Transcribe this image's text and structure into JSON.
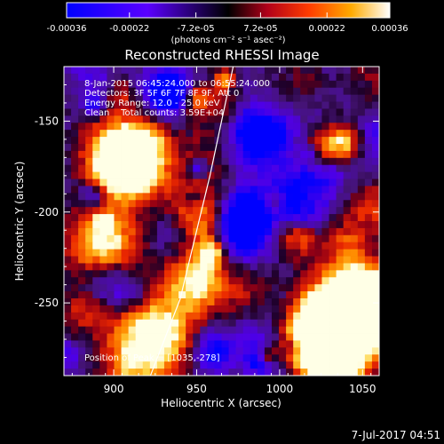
{
  "chart_data": {
    "type": "heatmap",
    "title": "Reconstructed RHESSI Image",
    "xlabel": "Heliocentric X (arcsec)",
    "ylabel": "Heliocentric Y (arcsec)",
    "xlim": [
      870,
      1060
    ],
    "ylim": [
      -290,
      -120
    ],
    "xticks": [
      "900",
      "950",
      "1000",
      "1050"
    ],
    "xtick_values": [
      900,
      950,
      1000,
      1050
    ],
    "yticks": [
      "-150",
      "-200",
      "-250"
    ],
    "ytick_values": [
      -150,
      -200,
      -250
    ],
    "colorbar": {
      "ticks": [
        "-0.00036",
        "-0.00022",
        "-7.2e-05",
        "7.2e-05",
        "0.00022",
        "0.00036"
      ],
      "tick_values": [
        -0.00036,
        -0.00022,
        -7.2e-05,
        7.2e-05,
        0.00022,
        0.00036
      ],
      "range": [
        -0.00036,
        0.00036
      ],
      "units": "(photons cm⁻² s⁻¹ asec⁻²)"
    },
    "annotations": [
      "8-Jan-2015 06:45:24.000 to 06:55:24.000",
      "Detectors: 3F 5F 6F 7F 8F 9F, Att 0",
      "Energy Range: 12.0 - 25.0 keV",
      "Clean    Total counts: 3.59E+04"
    ],
    "peak_label": "Position of Peak = [1035,-278]",
    "peak": [
      1035,
      -278
    ],
    "limb_line": [
      [
        920,
        -295
      ],
      [
        940,
        -248
      ],
      [
        958,
        -180
      ],
      [
        972,
        -120
      ]
    ],
    "grid": false
  },
  "footer": {
    "timestamp": "7-Jul-2017 04:51"
  }
}
